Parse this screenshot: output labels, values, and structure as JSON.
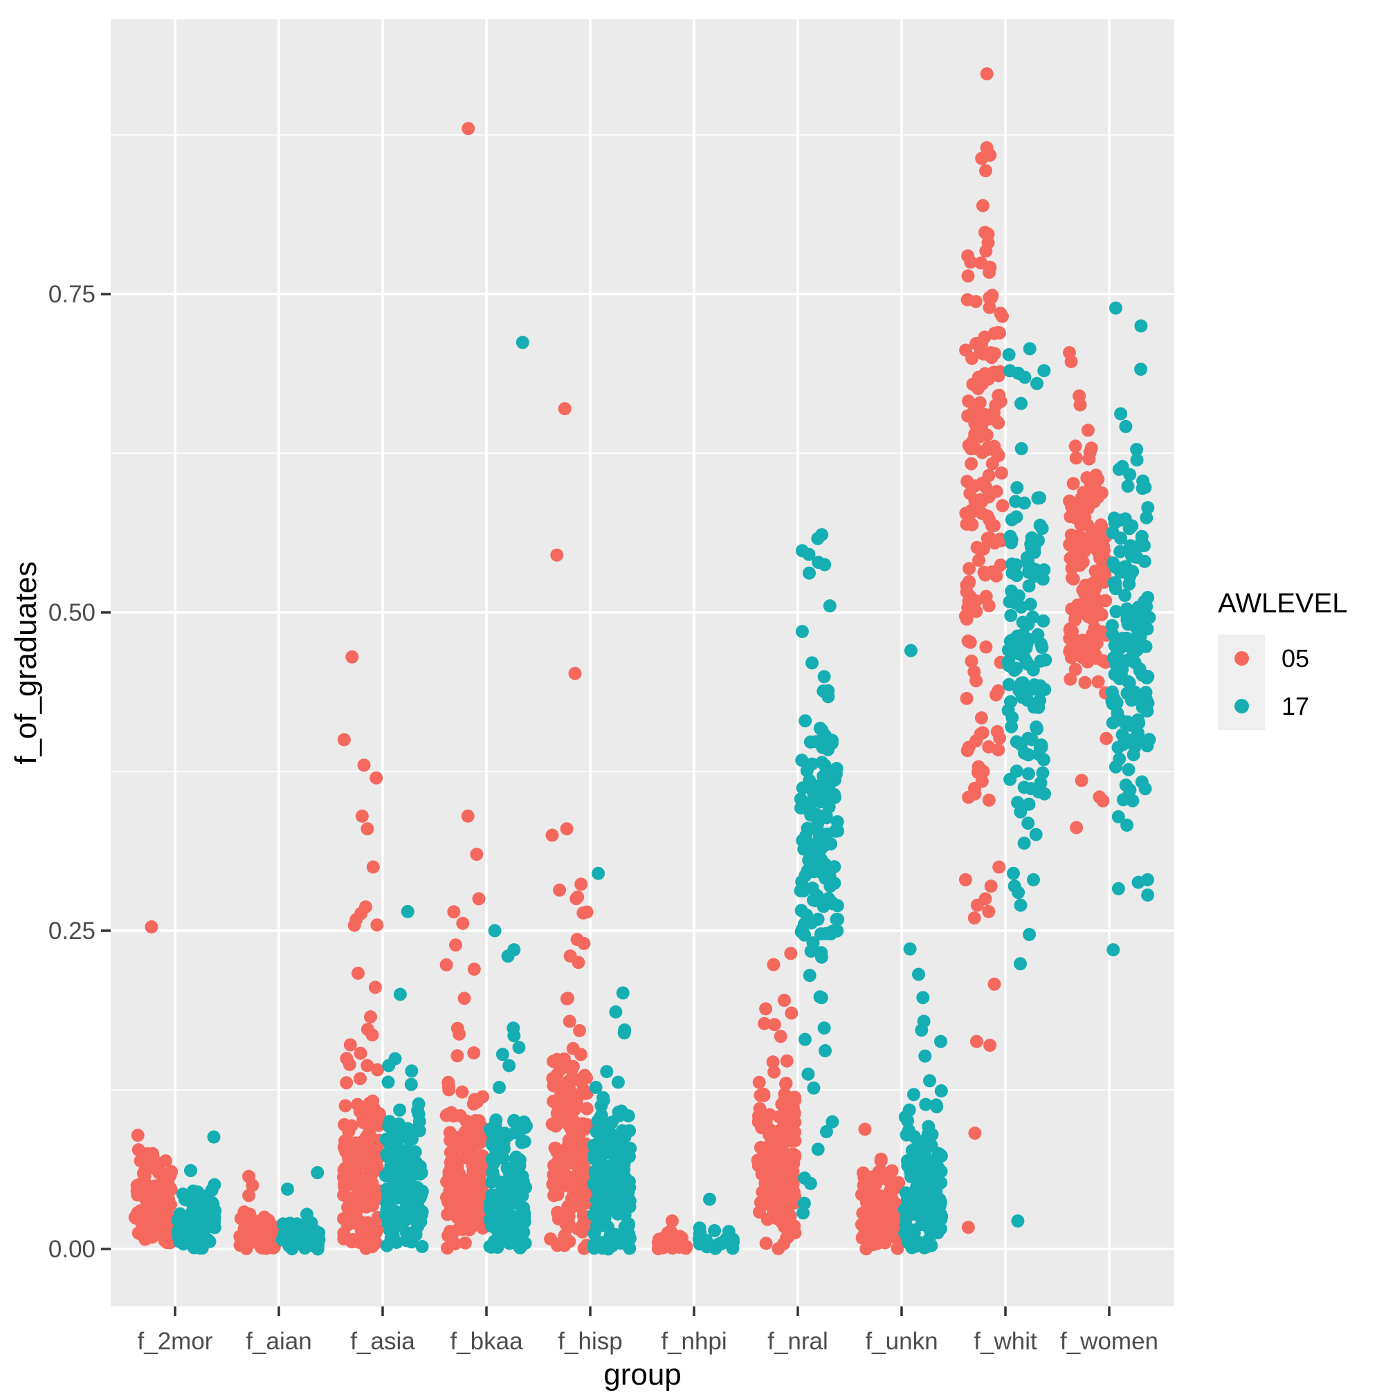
{
  "chart_data": {
    "type": "scatter",
    "subtype": "jittered-strip-dodged",
    "title": "",
    "xlabel": "group",
    "ylabel": "f_of_graduates",
    "x_categories": [
      "f_2mor",
      "f_aian",
      "f_asia",
      "f_bkaa",
      "f_hisp",
      "f_nhpi",
      "f_nral",
      "f_unkn",
      "f_whit",
      "f_women"
    ],
    "y_ticks": [
      "0.00",
      "0.25",
      "0.50",
      "0.75"
    ],
    "y_tick_values": [
      0,
      0.25,
      0.5,
      0.75
    ],
    "ylim": [
      -0.045,
      0.966
    ],
    "grid": {
      "major_values": [
        0,
        0.25,
        0.5,
        0.75
      ],
      "minor_values": [
        0.125,
        0.375,
        0.625,
        0.875
      ],
      "vertical_at_categories": true
    },
    "legend": {
      "title": "AWLEVEL",
      "position": "right",
      "entries": [
        {
          "label": "05",
          "color": "#F5685E"
        },
        {
          "label": "17",
          "color": "#14AEB3"
        }
      ]
    },
    "style": {
      "panel_bg": "#EBEBEB",
      "grid_color": "#FFFFFF",
      "tick_mark_color": "#333333",
      "tick_label_color": "#4D4D4D",
      "axis_title_color": "#000000",
      "legend_key_bg": "#EFEFEF"
    },
    "groups": [
      {
        "name": "f_2mor",
        "series": {
          "05": {
            "clusters": [
              {
                "n": 110,
                "dist": "normal",
                "mu": 0.035,
                "sigma": 0.022,
                "min": 0,
                "max": 0.115
              }
            ],
            "outliers": [
              0.253
            ]
          },
          "17": {
            "clusters": [
              {
                "n": 85,
                "dist": "normal",
                "mu": 0.018,
                "sigma": 0.016,
                "min": 0,
                "max": 0.065
              }
            ],
            "outliers": [
              0.088
            ]
          }
        }
      },
      {
        "name": "f_aian",
        "series": {
          "05": {
            "clusters": [
              {
                "n": 72,
                "dist": "normal",
                "mu": 0.008,
                "sigma": 0.009,
                "min": 0,
                "max": 0.035
              }
            ],
            "outliers": [
              0.057,
              0.05,
              0.042
            ]
          },
          "17": {
            "clusters": [
              {
                "n": 62,
                "dist": "normal",
                "mu": 0.007,
                "sigma": 0.008,
                "min": 0,
                "max": 0.03
              }
            ],
            "outliers": [
              0.06,
              0.047
            ]
          }
        }
      },
      {
        "name": "f_asia",
        "series": {
          "05": {
            "clusters": [
              {
                "n": 165,
                "dist": "normal",
                "mu": 0.055,
                "sigma": 0.045,
                "min": 0,
                "max": 0.16
              },
              {
                "n": 11,
                "dist": "uniform",
                "min": 0.16,
                "max": 0.27
              }
            ],
            "outliers": [
              0.465,
              0.4,
              0.38,
              0.37,
              0.34,
              0.33,
              0.3
            ]
          },
          "17": {
            "clusters": [
              {
                "n": 140,
                "dist": "normal",
                "mu": 0.045,
                "sigma": 0.036,
                "min": 0,
                "max": 0.125
              },
              {
                "n": 5,
                "dist": "uniform",
                "min": 0.125,
                "max": 0.165
              }
            ],
            "outliers": [
              0.265,
              0.2
            ]
          }
        }
      },
      {
        "name": "f_bkaa",
        "series": {
          "05": {
            "clusters": [
              {
                "n": 158,
                "dist": "normal",
                "mu": 0.05,
                "sigma": 0.042,
                "min": 0,
                "max": 0.155
              },
              {
                "n": 9,
                "dist": "uniform",
                "min": 0.155,
                "max": 0.28
              }
            ],
            "outliers": [
              0.88,
              0.34,
              0.31
            ]
          },
          "17": {
            "clusters": [
              {
                "n": 128,
                "dist": "normal",
                "mu": 0.04,
                "sigma": 0.034,
                "min": 0,
                "max": 0.115
              },
              {
                "n": 6,
                "dist": "uniform",
                "min": 0.115,
                "max": 0.185
              }
            ],
            "outliers": [
              0.712,
              0.25,
              0.235,
              0.23
            ]
          }
        }
      },
      {
        "name": "f_hisp",
        "series": {
          "05": {
            "clusters": [
              {
                "n": 165,
                "dist": "normal",
                "mu": 0.07,
                "sigma": 0.05,
                "min": 0,
                "max": 0.16
              },
              {
                "n": 14,
                "dist": "uniform",
                "min": 0.16,
                "max": 0.29
              }
            ],
            "outliers": [
              0.66,
              0.545,
              0.452,
              0.33,
              0.325
            ]
          },
          "17": {
            "clusters": [
              {
                "n": 148,
                "dist": "normal",
                "mu": 0.05,
                "sigma": 0.04,
                "min": 0,
                "max": 0.13
              },
              {
                "n": 6,
                "dist": "uniform",
                "min": 0.13,
                "max": 0.21
              }
            ],
            "outliers": [
              0.295
            ]
          }
        }
      },
      {
        "name": "f_nhpi",
        "series": {
          "05": {
            "clusters": [
              {
                "n": 27,
                "dist": "normal",
                "mu": 0.004,
                "sigma": 0.005,
                "min": 0,
                "max": 0.016
              }
            ],
            "outliers": [
              0.022
            ]
          },
          "17": {
            "clusters": [
              {
                "n": 25,
                "dist": "normal",
                "mu": 0.004,
                "sigma": 0.005,
                "min": 0,
                "max": 0.018
              }
            ],
            "outliers": [
              0.039
            ]
          }
        }
      },
      {
        "name": "f_nral",
        "series": {
          "05": {
            "clusters": [
              {
                "n": 150,
                "dist": "normal",
                "mu": 0.06,
                "sigma": 0.04,
                "min": 0,
                "max": 0.145
              },
              {
                "n": 10,
                "dist": "uniform",
                "min": 0.145,
                "max": 0.235
              }
            ],
            "outliers": []
          },
          "17": {
            "clusters": [
              {
                "n": 128,
                "dist": "normal",
                "mu": 0.32,
                "sigma": 0.06,
                "min": 0.19,
                "max": 0.46
              },
              {
                "n": 10,
                "dist": "uniform",
                "min": 0.46,
                "max": 0.575
              },
              {
                "n": 12,
                "dist": "uniform",
                "min": 0.025,
                "max": 0.19
              }
            ],
            "outliers": []
          }
        }
      },
      {
        "name": "f_unkn",
        "series": {
          "05": {
            "clusters": [
              {
                "n": 118,
                "dist": "normal",
                "mu": 0.025,
                "sigma": 0.02,
                "min": 0,
                "max": 0.075
              }
            ],
            "outliers": [
              0.094
            ]
          },
          "17": {
            "clusters": [
              {
                "n": 128,
                "dist": "normal",
                "mu": 0.04,
                "sigma": 0.034,
                "min": 0,
                "max": 0.125
              },
              {
                "n": 8,
                "dist": "uniform",
                "min": 0.125,
                "max": 0.24
              }
            ],
            "outliers": [
              0.47
            ]
          }
        }
      },
      {
        "name": "f_whit",
        "series": {
          "05": {
            "clusters": [
              {
                "n": 128,
                "dist": "normal",
                "mu": 0.615,
                "sigma": 0.085,
                "min": 0.46,
                "max": 0.8
              },
              {
                "n": 15,
                "dist": "uniform",
                "min": 0.743,
                "max": 0.866
              },
              {
                "n": 24,
                "dist": "normal",
                "mu": 0.41,
                "sigma": 0.042,
                "min": 0.31,
                "max": 0.5
              }
            ],
            "outliers": [
              0.923,
              0.3,
              0.29,
              0.285,
              0.275,
              0.27,
              0.265,
              0.26,
              0.208,
              0.163,
              0.16,
              0.091,
              0.017
            ]
          },
          "17": {
            "clusters": [
              {
                "n": 118,
                "dist": "normal",
                "mu": 0.47,
                "sigma": 0.085,
                "min": 0.305,
                "max": 0.64
              },
              {
                "n": 8,
                "dist": "uniform",
                "min": 0.64,
                "max": 0.715
              }
            ],
            "outliers": [
              0.295,
              0.29,
              0.285,
              0.28,
              0.27,
              0.247,
              0.224,
              0.022
            ]
          }
        }
      },
      {
        "name": "f_women",
        "series": {
          "05": {
            "clusters": [
              {
                "n": 138,
                "dist": "normal",
                "mu": 0.53,
                "sigma": 0.05,
                "min": 0.415,
                "max": 0.635
              }
            ],
            "outliers": [
              0.704,
              0.697,
              0.67,
              0.663,
              0.643,
              0.401,
              0.368,
              0.355,
              0.352,
              0.331
            ]
          },
          "17": {
            "clusters": [
              {
                "n": 148,
                "dist": "normal",
                "mu": 0.475,
                "sigma": 0.065,
                "min": 0.33,
                "max": 0.62
              }
            ],
            "outliers": [
              0.739,
              0.725,
              0.691,
              0.656,
              0.646,
              0.628,
              0.29,
              0.288,
              0.283,
              0.278,
              0.235
            ]
          }
        }
      }
    ]
  }
}
